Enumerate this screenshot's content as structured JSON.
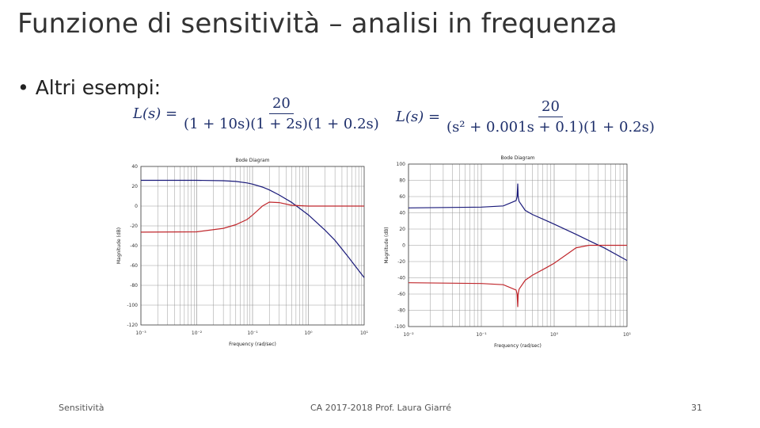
{
  "slide": {
    "title": "Funzione di sensitività – analisi in frequenza",
    "bullet": "• Altri esempi:",
    "formula1": {
      "lhs": "L(s) =",
      "num": "20",
      "den": "(1 + 10s)(1 + 2s)(1 + 0.2s)"
    },
    "formula2": {
      "lhs": "L(s) =",
      "num": "20",
      "den": "(s² + 0.001s + 0.1)(1 + 0.2s)"
    }
  },
  "footer": {
    "left": "Sensitività",
    "center": "CA 2017-2018 Prof. Laura Giarré",
    "page": "31"
  },
  "colors": {
    "loop_gain": "#1a1a7a",
    "sensitivity": "#c0282d",
    "grid": "#999999"
  },
  "chart_data": [
    {
      "type": "line",
      "title": "Bode Diagram",
      "xlabel": "Frequency (rad/sec)",
      "ylabel": "Magnitude (dB)",
      "xscale": "log",
      "xlim": [
        0.001,
        10
      ],
      "ylim": [
        -120,
        40
      ],
      "yticks": [
        "40",
        "20",
        "0",
        "-20",
        "-40",
        "-60",
        "-80",
        "-100",
        "-120"
      ],
      "xticks": [
        "10⁻³",
        "10⁻²",
        "10⁻¹",
        "10⁰",
        "10¹"
      ],
      "grid": true,
      "series": [
        {
          "color": "#1a1a7a",
          "x": [
            0.001,
            0.01,
            0.03,
            0.05,
            0.08,
            0.1,
            0.15,
            0.2,
            0.3,
            0.5,
            1,
            2,
            3,
            5,
            10
          ],
          "y": [
            26,
            26,
            25.6,
            24.9,
            23.4,
            22.2,
            19.2,
            16.3,
            11.2,
            3.8,
            -8.9,
            -24.5,
            -34.6,
            -50.2,
            -72.2
          ]
        },
        {
          "color": "#c0282d",
          "x": [
            0.001,
            0.01,
            0.03,
            0.05,
            0.08,
            0.1,
            0.12,
            0.15,
            0.2,
            0.3,
            0.5,
            1,
            10
          ],
          "y": [
            -26.3,
            -26,
            -22.5,
            -18.8,
            -13.5,
            -9,
            -5,
            0,
            4,
            3.5,
            0.8,
            0,
            0
          ]
        }
      ]
    },
    {
      "type": "line",
      "title": "Bode Diagram",
      "xlabel": "Frequency (rad/sec)",
      "ylabel": "Magnitude (dB)",
      "xscale": "log",
      "xlim": [
        0.01,
        10
      ],
      "ylim": [
        -100,
        100
      ],
      "yticks": [
        "100",
        "80",
        "60",
        "40",
        "20",
        "0",
        "-20",
        "-40",
        "-60",
        "-80",
        "-100"
      ],
      "xticks": [
        "10⁻²",
        "10⁻¹",
        "10⁰",
        "10¹"
      ],
      "grid": true,
      "series": [
        {
          "color": "#1a1a7a",
          "x": [
            0.01,
            0.1,
            0.2,
            0.3,
            0.31,
            0.316,
            0.32,
            0.33,
            0.4,
            0.5,
            0.8,
            1,
            2,
            3,
            5,
            10
          ],
          "y": [
            46,
            47,
            48.5,
            55,
            60,
            76,
            60,
            54,
            43,
            38,
            30,
            26,
            13.5,
            5.8,
            -3.7,
            -18.6
          ]
        },
        {
          "color": "#c0282d",
          "x": [
            0.01,
            0.1,
            0.2,
            0.3,
            0.31,
            0.316,
            0.32,
            0.33,
            0.4,
            0.5,
            0.8,
            1,
            1.5,
            2,
            3,
            10
          ],
          "y": [
            -46,
            -47,
            -48.5,
            -55,
            -60,
            -76,
            -60,
            -54,
            -43,
            -37,
            -27,
            -22,
            -11,
            -3,
            0,
            0
          ]
        }
      ]
    }
  ]
}
